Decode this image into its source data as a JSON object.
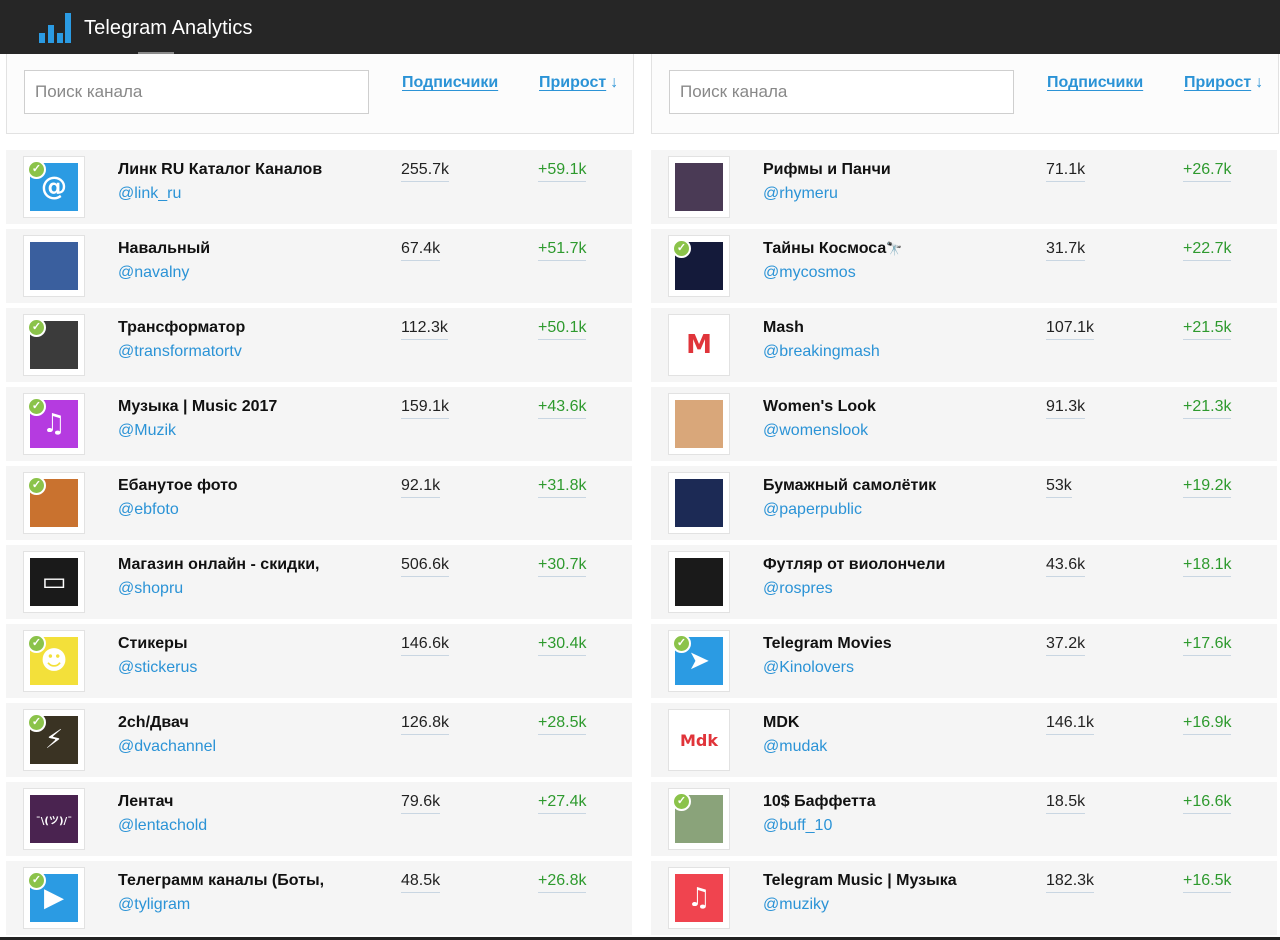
{
  "app": {
    "title": "Telegram Analytics",
    "icon": "bar-chart-icon",
    "accent": "#2b9be3"
  },
  "columns": [
    {
      "search_placeholder": "Поиск канала",
      "header_subscribers": "Подписчики",
      "header_growth": "Прирост",
      "sort_indicator": "↓",
      "rows": [
        {
          "name": "Линк RU Каталог Каналов",
          "handle": "@link_ru",
          "subscribers": "255.7k",
          "growth": "+59.1k",
          "verified": true,
          "avatar_color": "#2b9be3",
          "avatar_glyph": "@"
        },
        {
          "name": "Навальный",
          "handle": "@navalny",
          "subscribers": "67.4k",
          "growth": "+51.7k",
          "verified": false,
          "avatar_color": "#3a5f9e",
          "avatar_glyph": ""
        },
        {
          "name": "Трансформатор",
          "handle": "@transformatortv",
          "subscribers": "112.3k",
          "growth": "+50.1k",
          "verified": true,
          "avatar_color": "#3b3b3b",
          "avatar_glyph": ""
        },
        {
          "name": "Музыка | Music 2017",
          "handle": "@Muzik",
          "subscribers": "159.1k",
          "growth": "+43.6k",
          "verified": true,
          "avatar_color": "#b53be0",
          "avatar_glyph": "♫"
        },
        {
          "name": "Ебанутое фото",
          "handle": "@ebfoto",
          "subscribers": "92.1k",
          "growth": "+31.8k",
          "verified": true,
          "avatar_color": "#c9722f",
          "avatar_glyph": ""
        },
        {
          "name": "Магазин онлайн - скидки,",
          "handle": "@shopru",
          "subscribers": "506.6k",
          "growth": "+30.7k",
          "verified": false,
          "avatar_color": "#1a1a1a",
          "avatar_glyph": "▭"
        },
        {
          "name": "Стикеры",
          "handle": "@stickerus",
          "subscribers": "146.6k",
          "growth": "+30.4k",
          "verified": true,
          "avatar_color": "#f3e03a",
          "avatar_glyph": "☻"
        },
        {
          "name": "2ch/Двач",
          "handle": "@dvachannel",
          "subscribers": "126.8k",
          "growth": "+28.5k",
          "verified": true,
          "avatar_color": "#3a3323",
          "avatar_glyph": "⚡"
        },
        {
          "name": "Лентач",
          "handle": "@lentachold",
          "subscribers": "79.6k",
          "growth": "+27.4k",
          "verified": false,
          "avatar_color": "#4a2350",
          "avatar_glyph": "¯\\(ツ)/¯"
        },
        {
          "name": "Телеграмм каналы (Боты,",
          "handle": "@tyligram",
          "subscribers": "48.5k",
          "growth": "+26.8k",
          "verified": true,
          "avatar_color": "#2b9be3",
          "avatar_glyph": "▶"
        }
      ]
    },
    {
      "search_placeholder": "Поиск канала",
      "header_subscribers": "Подписчики",
      "header_growth": "Прирост",
      "sort_indicator": "↓",
      "rows": [
        {
          "name": "Рифмы и Панчи",
          "handle": "@rhymeru",
          "subscribers": "71.1k",
          "growth": "+26.7k",
          "verified": false,
          "avatar_color": "#4a3a55",
          "avatar_glyph": ""
        },
        {
          "name": "Тайны Космоса",
          "name_suffix": "🔭",
          "handle": "@mycosmos",
          "subscribers": "31.7k",
          "growth": "+22.7k",
          "verified": true,
          "avatar_color": "#141a3a",
          "avatar_glyph": ""
        },
        {
          "name": "Mash",
          "handle": "@breakingmash",
          "subscribers": "107.1k",
          "growth": "+21.5k",
          "verified": false,
          "avatar_color": "#ffffff",
          "avatar_glyph": "M"
        },
        {
          "name": "Women's Look",
          "handle": "@womenslook",
          "subscribers": "91.3k",
          "growth": "+21.3k",
          "verified": false,
          "avatar_color": "#d9a77a",
          "avatar_glyph": ""
        },
        {
          "name": "Бумажный самолётик",
          "handle": "@paperpublic",
          "subscribers": "53k",
          "growth": "+19.2k",
          "verified": false,
          "avatar_color": "#1c2a55",
          "avatar_glyph": ""
        },
        {
          "name": "Футляр от виолончели",
          "handle": "@rospres",
          "subscribers": "43.6k",
          "growth": "+18.1k",
          "verified": false,
          "avatar_color": "#1a1a1a",
          "avatar_glyph": ""
        },
        {
          "name": "Telegram Movies",
          "handle": "@Kinolovers",
          "subscribers": "37.2k",
          "growth": "+17.6k",
          "verified": true,
          "avatar_color": "#2b9be3",
          "avatar_glyph": "➤"
        },
        {
          "name": "MDK",
          "handle": "@mudak",
          "subscribers": "146.1k",
          "growth": "+16.9k",
          "verified": false,
          "avatar_color": "#ffffff",
          "avatar_glyph": "Mdk"
        },
        {
          "name": "10$ Баффетта",
          "handle": "@buff_10",
          "subscribers": "18.5k",
          "growth": "+16.6k",
          "verified": true,
          "avatar_color": "#8aa37a",
          "avatar_glyph": ""
        },
        {
          "name": "Telegram Music | Музыка",
          "handle": "@muziky",
          "subscribers": "182.3k",
          "growth": "+16.5k",
          "verified": false,
          "avatar_color": "#f0444f",
          "avatar_glyph": "♫"
        }
      ]
    }
  ]
}
